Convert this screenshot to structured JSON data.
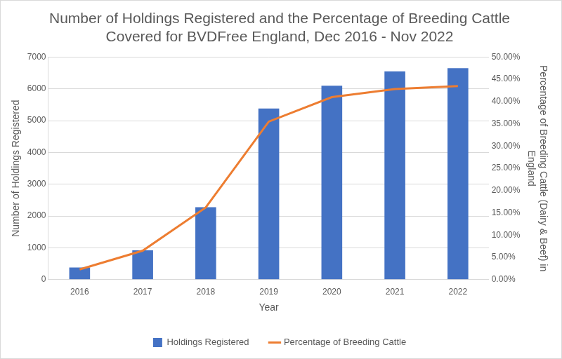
{
  "chart_data": {
    "type": "bar",
    "title": "Number of Holdings Registered and the Percentage of Breeding Cattle Covered for BVDFree England, Dec 2016 - Nov 2022",
    "x_label": "Year",
    "y_label": "Number of Holdings Registered",
    "y2_label": "Percentage of Breeding Cattle (Dairy & Beef) in England",
    "categories": [
      "2016",
      "2017",
      "2018",
      "2019",
      "2020",
      "2021",
      "2022"
    ],
    "series": [
      {
        "name": "Holdings Registered",
        "type": "bar",
        "color": "#4472c4",
        "values": [
          380,
          920,
          2280,
          5380,
          6100,
          6550,
          6650
        ]
      },
      {
        "name": "Percentage of Breeding Cattle",
        "type": "line",
        "color": "#ed7d31",
        "axis": "y2",
        "marker": "none",
        "values": [
          2.3,
          6.5,
          16.2,
          35.5,
          41.0,
          42.8,
          43.5
        ]
      }
    ],
    "ylim": [
      0,
      7000
    ],
    "yticks": [
      0,
      1000,
      2000,
      3000,
      4000,
      5000,
      6000,
      7000
    ],
    "y2lim": [
      0,
      50
    ],
    "y2ticks": [
      {
        "value": 0,
        "label": "0.00%"
      },
      {
        "value": 5,
        "label": "5.00%"
      },
      {
        "value": 10,
        "label": "10.00%"
      },
      {
        "value": 15,
        "label": "15.00%"
      },
      {
        "value": 20,
        "label": "20.00%"
      },
      {
        "value": 25,
        "label": "25.00%"
      },
      {
        "value": 30,
        "label": "30.00%"
      },
      {
        "value": 35,
        "label": "35.00%"
      },
      {
        "value": 40,
        "label": "40.00%"
      },
      {
        "value": 45,
        "label": "45.00%"
      },
      {
        "value": 50,
        "label": "50.00%"
      }
    ],
    "grid": true,
    "legend": "bottom"
  }
}
